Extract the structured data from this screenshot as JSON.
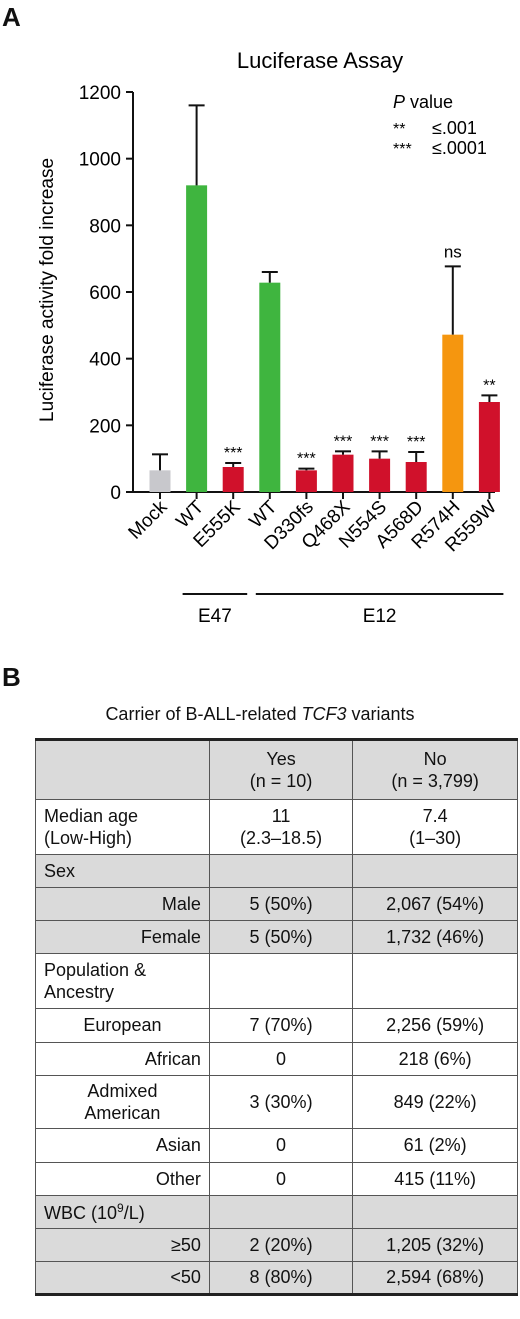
{
  "panel_a_label": "A",
  "panel_b_label": "B",
  "chart_data": {
    "type": "bar",
    "title": "Luciferase Assay",
    "ylabel": "Luciferase activity fold increase",
    "xlabel": "",
    "ylim": [
      0,
      1200
    ],
    "yticks": [
      0,
      200,
      400,
      600,
      800,
      1000,
      1200
    ],
    "categories": [
      "Mock",
      "WT",
      "E555K",
      "WT",
      "D330fs",
      "Q468X",
      "N554S",
      "A568D",
      "R574H",
      "R559W"
    ],
    "values": [
      65,
      920,
      75,
      628,
      65,
      112,
      100,
      90,
      472,
      270
    ],
    "errors": [
      48,
      240,
      12,
      32,
      5,
      10,
      22,
      30,
      205,
      20
    ],
    "significance": [
      "",
      "",
      "***",
      "",
      "***",
      "***",
      "***",
      "***",
      "ns",
      "**"
    ],
    "colors": [
      "#c8c8cc",
      "#3fb53f",
      "#d0112b",
      "#3fb53f",
      "#d0112b",
      "#d0112b",
      "#d0112b",
      "#d0112b",
      "#f5960f",
      "#d0112b"
    ],
    "groups": [
      {
        "label": "E47",
        "from": 1,
        "to": 2
      },
      {
        "label": "E12",
        "from": 3,
        "to": 9
      }
    ],
    "legend": {
      "title_italic": "P",
      "title_rest": " value",
      "entries": [
        {
          "symbol": "**",
          "text": "≤.001"
        },
        {
          "symbol": "***",
          "text": "≤.0001"
        }
      ]
    },
    "grid": false
  },
  "table": {
    "title_prefix": "Carrier of B-ALL-related ",
    "title_italic": "TCF3",
    "title_suffix": " variants",
    "header": {
      "yes": "Yes",
      "yes_n": "(n = 10)",
      "no": "No",
      "no_n": "(n = 3,799)"
    },
    "median_age": {
      "label1": "Median age",
      "label2": "(Low-High)",
      "yes1": "11",
      "yes2": "(2.3–18.5)",
      "no1": "7.4",
      "no2": "(1–30)"
    },
    "sex_label": "Sex",
    "male": {
      "label": "Male",
      "yes": "5 (50%)",
      "no": "2,067 (54%)"
    },
    "female": {
      "label": "Female",
      "yes": "5 (50%)",
      "no": "1,732 (46%)"
    },
    "population_label1": "Population &",
    "population_label2": "Ancestry",
    "european": {
      "label": "European",
      "yes": "7 (70%)",
      "no": "2,256 (59%)"
    },
    "african": {
      "label": "African",
      "yes": "0",
      "no": "218 (6%)"
    },
    "admixed": {
      "label1": "Admixed",
      "label2": "American",
      "yes": "3 (30%)",
      "no": "849 (22%)"
    },
    "asian": {
      "label": "Asian",
      "yes": "0",
      "no": "61 (2%)"
    },
    "other": {
      "label": "Other",
      "yes": "0",
      "no": "415 (11%)"
    },
    "wbc_label_pre": "WBC (10",
    "wbc_label_sup": "9",
    "wbc_label_post": "/L)",
    "wbc_ge50": {
      "label": "≥50",
      "yes": "2 (20%)",
      "no": "1,205 (32%)"
    },
    "wbc_lt50": {
      "label": "<50",
      "yes": "8 (80%)",
      "no": "2,594 (68%)"
    }
  }
}
